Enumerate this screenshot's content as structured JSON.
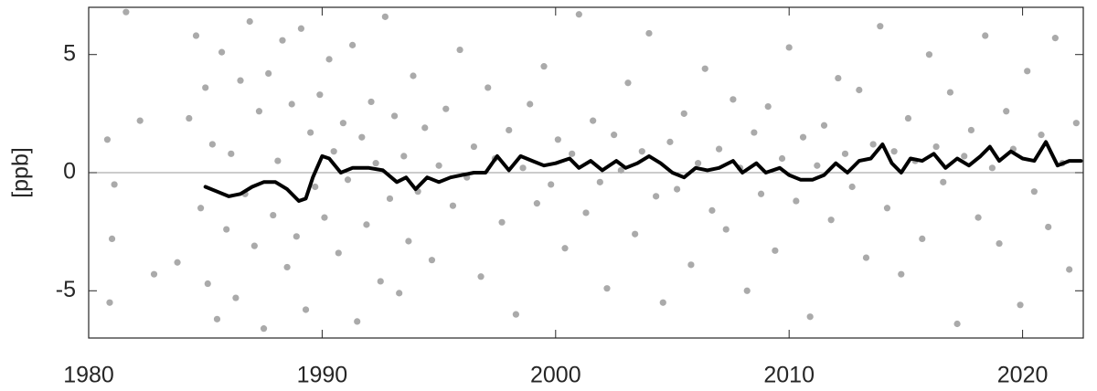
{
  "chart_data": {
    "type": "scatter",
    "ylabel": "[ppb]",
    "xlim": [
      1980,
      2022.6
    ],
    "ylim": [
      -7,
      7
    ],
    "xticks": [
      1980,
      1990,
      2000,
      2010,
      2020
    ],
    "yticks": [
      -5,
      0,
      5
    ],
    "zero_line": true,
    "series": [
      {
        "mode": "markers",
        "color": "#aaaaaa",
        "x": [
          1980.8,
          1980.9,
          1981.0,
          1981.1,
          1981.6,
          1982.2,
          1982.8,
          1983.8,
          1984.3,
          1984.6,
          1984.8,
          1985.0,
          1985.1,
          1985.3,
          1985.5,
          1985.7,
          1985.9,
          1986.1,
          1986.3,
          1986.5,
          1986.7,
          1986.9,
          1987.1,
          1987.3,
          1987.5,
          1987.7,
          1987.9,
          1988.1,
          1988.3,
          1988.5,
          1988.7,
          1988.9,
          1989.1,
          1989.3,
          1989.5,
          1989.7,
          1989.9,
          1990.1,
          1990.3,
          1990.5,
          1990.7,
          1990.9,
          1991.1,
          1991.3,
          1991.5,
          1991.7,
          1991.9,
          1992.1,
          1992.3,
          1992.5,
          1992.7,
          1992.9,
          1993.1,
          1993.3,
          1993.5,
          1993.7,
          1993.9,
          1994.1,
          1994.4,
          1994.7,
          1995.0,
          1995.3,
          1995.6,
          1995.9,
          1996.2,
          1996.5,
          1996.8,
          1997.1,
          1997.4,
          1997.7,
          1998.0,
          1998.3,
          1998.6,
          1998.9,
          1999.2,
          1999.5,
          1999.8,
          2000.1,
          2000.4,
          2000.7,
          2001.0,
          2001.3,
          2001.6,
          2001.9,
          2002.2,
          2002.5,
          2002.8,
          2003.1,
          2003.4,
          2003.7,
          2004.0,
          2004.3,
          2004.6,
          2004.9,
          2005.2,
          2005.5,
          2005.8,
          2006.1,
          2006.4,
          2006.7,
          2007.0,
          2007.3,
          2007.6,
          2007.9,
          2008.2,
          2008.5,
          2008.8,
          2009.1,
          2009.4,
          2009.7,
          2010.0,
          2010.3,
          2010.6,
          2010.9,
          2011.2,
          2011.5,
          2011.8,
          2012.1,
          2012.4,
          2012.7,
          2013.0,
          2013.3,
          2013.6,
          2013.9,
          2014.2,
          2014.5,
          2014.8,
          2015.1,
          2015.4,
          2015.7,
          2016.0,
          2016.3,
          2016.6,
          2016.9,
          2017.2,
          2017.5,
          2017.8,
          2018.1,
          2018.4,
          2018.7,
          2019.0,
          2019.3,
          2019.6,
          2019.9,
          2020.2,
          2020.5,
          2020.8,
          2021.1,
          2021.4,
          2021.7,
          2022.0,
          2022.3
        ],
        "values": [
          1.4,
          -5.5,
          -2.8,
          -0.5,
          6.8,
          2.2,
          -4.3,
          -3.8,
          2.3,
          5.8,
          -1.5,
          3.6,
          -4.7,
          1.2,
          -6.2,
          5.1,
          -2.4,
          0.8,
          -5.3,
          3.9,
          -0.9,
          6.4,
          -3.1,
          2.6,
          -6.6,
          4.2,
          -1.8,
          0.5,
          5.6,
          -4.0,
          2.9,
          -2.7,
          6.1,
          -5.8,
          1.7,
          -0.6,
          3.3,
          -1.9,
          4.8,
          0.9,
          -3.4,
          2.1,
          -0.3,
          5.4,
          -6.3,
          1.5,
          -2.2,
          3.0,
          0.4,
          -4.6,
          6.6,
          -1.1,
          2.4,
          -5.1,
          0.7,
          -2.9,
          4.1,
          -0.8,
          1.9,
          -3.7,
          0.3,
          2.7,
          -1.4,
          5.2,
          -0.2,
          1.1,
          -4.4,
          3.6,
          0.6,
          -2.1,
          1.8,
          -6.0,
          0.2,
          2.9,
          -1.3,
          4.5,
          -0.5,
          1.4,
          -3.2,
          0.8,
          6.7,
          -1.7,
          2.2,
          -0.4,
          -4.9,
          1.6,
          0.1,
          3.8,
          -2.6,
          0.9,
          5.9,
          -1.0,
          -5.5,
          1.3,
          -0.7,
          2.5,
          -3.9,
          0.4,
          4.4,
          -1.6,
          1.0,
          -2.4,
          3.1,
          0.2,
          -5.0,
          1.7,
          -0.9,
          2.8,
          -3.3,
          0.6,
          5.3,
          -1.2,
          1.5,
          -6.1,
          0.3,
          2.0,
          -2.0,
          4.0,
          0.8,
          -0.6,
          3.5,
          -3.6,
          1.2,
          6.2,
          -1.5,
          0.9,
          -4.3,
          2.3,
          0.5,
          -2.8,
          5.0,
          1.1,
          -0.4,
          3.4,
          -6.4,
          0.7,
          1.8,
          -1.9,
          5.8,
          0.2,
          -3.0,
          2.6,
          1.0,
          -5.6,
          4.3,
          -0.8,
          1.6,
          -2.3,
          5.7,
          0.4,
          -4.1,
          2.1
        ]
      },
      {
        "mode": "line",
        "color": "#000000",
        "x": [
          1985.0,
          1985.5,
          1986.0,
          1986.5,
          1987.0,
          1987.5,
          1988.0,
          1988.5,
          1989.0,
          1989.3,
          1989.6,
          1990.0,
          1990.3,
          1990.8,
          1991.3,
          1992.0,
          1992.6,
          1993.2,
          1993.6,
          1994.0,
          1994.5,
          1995.0,
          1995.5,
          1996.0,
          1996.5,
          1997.0,
          1997.5,
          1998.0,
          1998.5,
          1999.0,
          1999.5,
          2000.0,
          2000.6,
          2001.0,
          2001.5,
          2002.0,
          2002.6,
          2003.0,
          2003.5,
          2004.0,
          2004.5,
          2005.0,
          2005.5,
          2006.0,
          2006.5,
          2007.0,
          2007.6,
          2008.0,
          2008.6,
          2009.0,
          2009.6,
          2010.0,
          2010.5,
          2011.0,
          2011.5,
          2012.0,
          2012.5,
          2013.0,
          2013.5,
          2014.0,
          2014.4,
          2014.8,
          2015.2,
          2015.7,
          2016.2,
          2016.7,
          2017.2,
          2017.7,
          2018.2,
          2018.6,
          2019.0,
          2019.5,
          2020.0,
          2020.5,
          2021.0,
          2021.5,
          2022.0,
          2022.5
        ],
        "values": [
          -0.6,
          -0.8,
          -1.0,
          -0.9,
          -0.6,
          -0.4,
          -0.4,
          -0.7,
          -1.2,
          -1.1,
          -0.2,
          0.7,
          0.6,
          0.0,
          0.2,
          0.2,
          0.1,
          -0.4,
          -0.2,
          -0.7,
          -0.2,
          -0.4,
          -0.2,
          -0.1,
          0.0,
          0.0,
          0.7,
          0.1,
          0.7,
          0.5,
          0.3,
          0.4,
          0.6,
          0.2,
          0.5,
          0.1,
          0.5,
          0.2,
          0.4,
          0.7,
          0.4,
          0.0,
          -0.2,
          0.2,
          0.1,
          0.2,
          0.5,
          0.0,
          0.4,
          0.0,
          0.2,
          -0.1,
          -0.3,
          -0.3,
          -0.1,
          0.4,
          0.0,
          0.5,
          0.6,
          1.2,
          0.4,
          0.0,
          0.6,
          0.5,
          0.8,
          0.2,
          0.6,
          0.3,
          0.7,
          1.1,
          0.5,
          0.9,
          0.6,
          0.5,
          1.3,
          0.3,
          0.5,
          0.5
        ]
      }
    ]
  }
}
